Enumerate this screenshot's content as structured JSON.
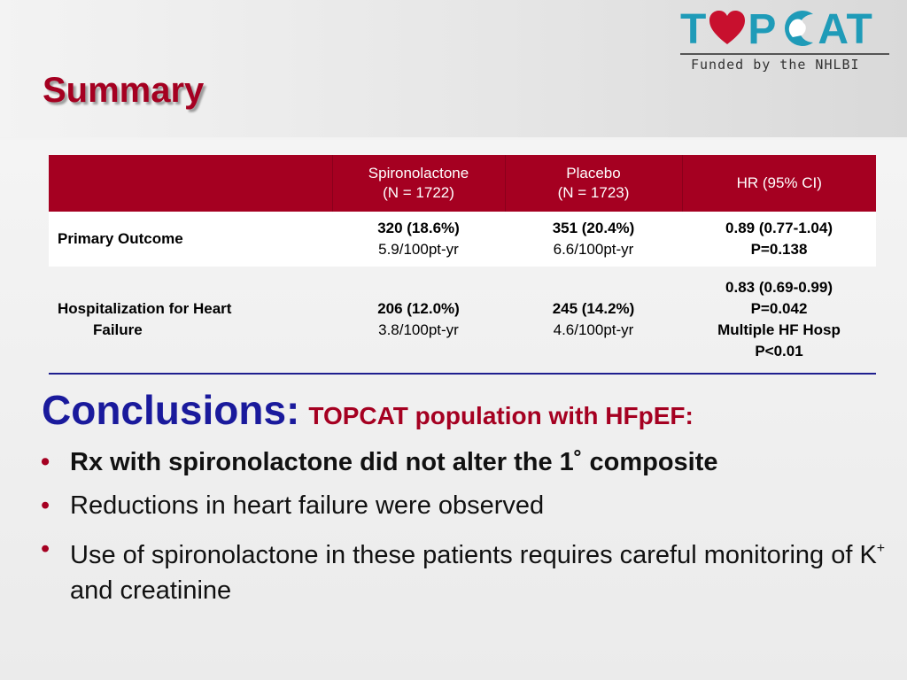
{
  "slide": {
    "title": "Summary"
  },
  "logo": {
    "letters_1": "T",
    "letters_2": "P",
    "letters_3": "AT",
    "funding": "Funded by the NHLBI",
    "colors": {
      "teal": "#1f9bb8",
      "heart": "#c8102e"
    }
  },
  "table": {
    "headers": [
      "",
      "Spironolactone",
      "(N = 1722)",
      "Placebo",
      "(N = 1723)",
      "HR (95% CI)"
    ],
    "rows": [
      {
        "label": "Primary Outcome",
        "spiro_count": "320 (18.6%)",
        "spiro_rate": "5.9/100pt-yr",
        "placebo_count": "351 (20.4%)",
        "placebo_rate": "6.6/100pt-yr",
        "hr_1": "0.89 (0.77-1.04)",
        "hr_2": "P=0.138"
      },
      {
        "label_1": "Hospitalization for Heart",
        "label_2": "Failure",
        "spiro_count": "206 (12.0%)",
        "spiro_rate": "3.8/100pt-yr",
        "placebo_count": "245 (14.2%)",
        "placebo_rate": "4.6/100pt-yr",
        "hr_1": "0.83 (0.69-0.99)",
        "hr_2": "P=0.042",
        "hr_3": "Multiple HF Hosp",
        "hr_4": "P<0.01"
      }
    ]
  },
  "conclusions": {
    "heading": "Conclusions:",
    "subheading": "TOPCAT population with HFpEF:",
    "bullet_marker": "•",
    "bullets": [
      "Rx with spironolactone did not alter the 1˚ composite",
      "Reductions in heart failure were observed",
      "Use of spironolactone in these patients requires careful monitoring of K"
    ],
    "bullet3_superscript": "+",
    "bullet3_tail": " and creatinine"
  },
  "colors": {
    "accent_red": "#a50021",
    "heading_blue": "#1a1a9c"
  }
}
